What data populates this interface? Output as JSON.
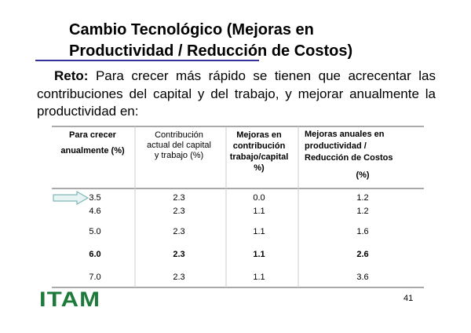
{
  "header": {
    "title_lines": [
      "Cambio Tecnológico  (Mejoras en",
      "Productividad / Reducción de Costos)"
    ]
  },
  "body": {
    "lead": "Reto:",
    "text": "Para crecer más rápido se tienen que acrecentar las contribuciones del capital y del trabajo, y mejorar anualmente la productividad en:"
  },
  "table": {
    "headers": [
      [
        "Para crecer",
        "anualmente (%)"
      ],
      [
        "Contribución",
        "actual del capital",
        "y trabajo (%)"
      ],
      [
        "Mejoras en",
        "contribución",
        "trabajo/capital",
        "%)"
      ],
      [
        "Mejoras anuales en",
        "productividad /",
        "Reducción de Costos",
        "(%)"
      ]
    ],
    "rows": [
      [
        "3.5",
        "2.3",
        "0.0",
        "1.2"
      ],
      [
        "4.6",
        "2.3",
        "1.1",
        "1.2"
      ],
      [
        "5.0",
        "2.3",
        "1.1",
        "1.6"
      ],
      [
        "6.0",
        "2.3",
        "1.1",
        "2.6"
      ],
      [
        "7.0",
        "2.3",
        "1.1",
        "3.6"
      ]
    ]
  },
  "footer": {
    "logo": "ITAM",
    "page": "41"
  }
}
